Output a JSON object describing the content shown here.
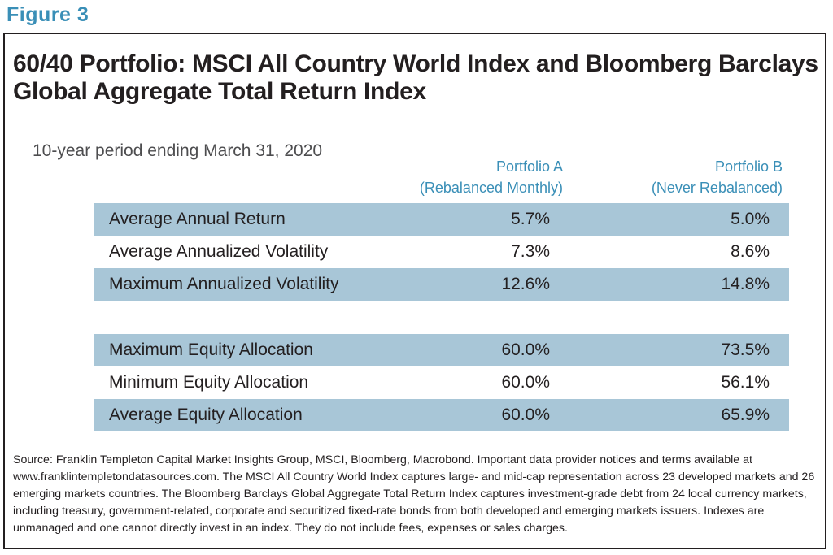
{
  "figure_label": "Figure 3",
  "title": "60/40 Portfolio: MSCI All Country World Index and Bloomberg Barclays Global Aggregate Total Return Index",
  "subtitle": "10-year period ending March 31, 2020",
  "columns": {
    "a": {
      "name": "Portfolio A",
      "note": "(Rebalanced Monthly)"
    },
    "b": {
      "name": "Portfolio B",
      "note": "(Never Rebalanced)"
    }
  },
  "chart_data": {
    "type": "table",
    "title": "60/40 Portfolio: MSCI All Country World Index and Bloomberg Barclays Global Aggregate Total Return Index",
    "columns": [
      "Portfolio A (Rebalanced Monthly)",
      "Portfolio B (Never Rebalanced)"
    ],
    "groups": [
      {
        "rows": [
          {
            "label": "Average Annual Return",
            "a": "5.7%",
            "b": "5.0%"
          },
          {
            "label": "Average Annualized Volatility",
            "a": "7.3%",
            "b": "8.6%"
          },
          {
            "label": "Maximum Annualized Volatility",
            "a": "12.6%",
            "b": "14.8%"
          }
        ]
      },
      {
        "rows": [
          {
            "label": "Maximum Equity Allocation",
            "a": "60.0%",
            "b": "73.5%"
          },
          {
            "label": "Minimum Equity Allocation",
            "a": "60.0%",
            "b": "56.1%"
          },
          {
            "label": "Average Equity Allocation",
            "a": "60.0%",
            "b": "65.9%"
          }
        ]
      }
    ],
    "row_shading_color": "#a8c6d7",
    "header_color": "#3a8fb7"
  },
  "source": "Source: Franklin Templeton Capital Market Insights Group, MSCI, Bloomberg, Macrobond. Important data provider notices and terms available at www.franklintempletondatasources.com. The MSCI All Country World Index captures large- and mid-cap representation across 23 developed markets and 26 emerging markets countries. The Bloomberg Barclays Global Aggregate Total Return Index captures investment-grade debt from 24 local currency markets, including treasury, government-related, corporate and securitized fixed-rate bonds from both developed and emerging markets issuers. Indexes are unmanaged and one cannot directly invest in an index. They do not include fees, expenses or sales charges."
}
